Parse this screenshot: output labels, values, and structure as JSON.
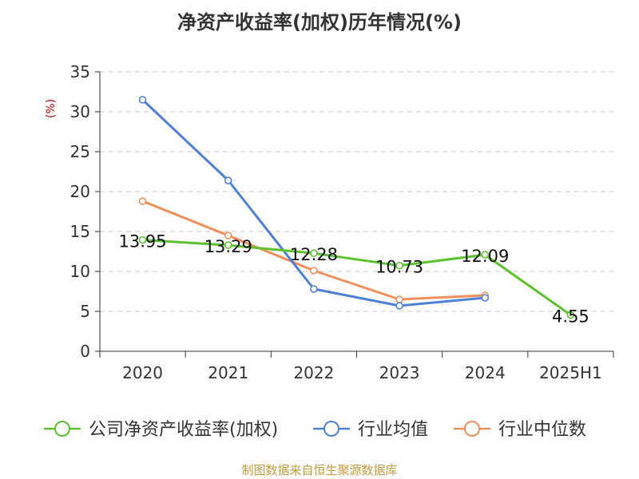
{
  "chart_data": {
    "type": "line",
    "title": "净资产收益率(加权)历年情况(%)",
    "ylabel": "(%)",
    "categories": [
      "2020",
      "2021",
      "2022",
      "2023",
      "2024",
      "2025H1"
    ],
    "ylim": [
      0,
      35
    ],
    "yticks": [
      "0",
      "5",
      "10",
      "15",
      "20",
      "25",
      "30",
      "35"
    ],
    "grid": true,
    "legend_position": "bottom",
    "series": [
      {
        "name": "公司净资产收益率(加权)",
        "color": "#5cc22c",
        "values": [
          13.95,
          13.29,
          12.28,
          10.73,
          12.09,
          4.55
        ],
        "labels": [
          "13.95",
          "13.29",
          "12.28",
          "10.73",
          "12.09",
          "4.55"
        ]
      },
      {
        "name": "行业均值",
        "color": "#4e7fd9",
        "values": [
          31.5,
          21.4,
          7.8,
          5.7,
          6.7,
          null
        ]
      },
      {
        "name": "行业中位数",
        "color": "#f28e5c",
        "values": [
          18.8,
          14.5,
          10.1,
          6.5,
          7.0,
          null
        ]
      }
    ]
  },
  "footer": "制图数据来自恒生聚源数据库"
}
